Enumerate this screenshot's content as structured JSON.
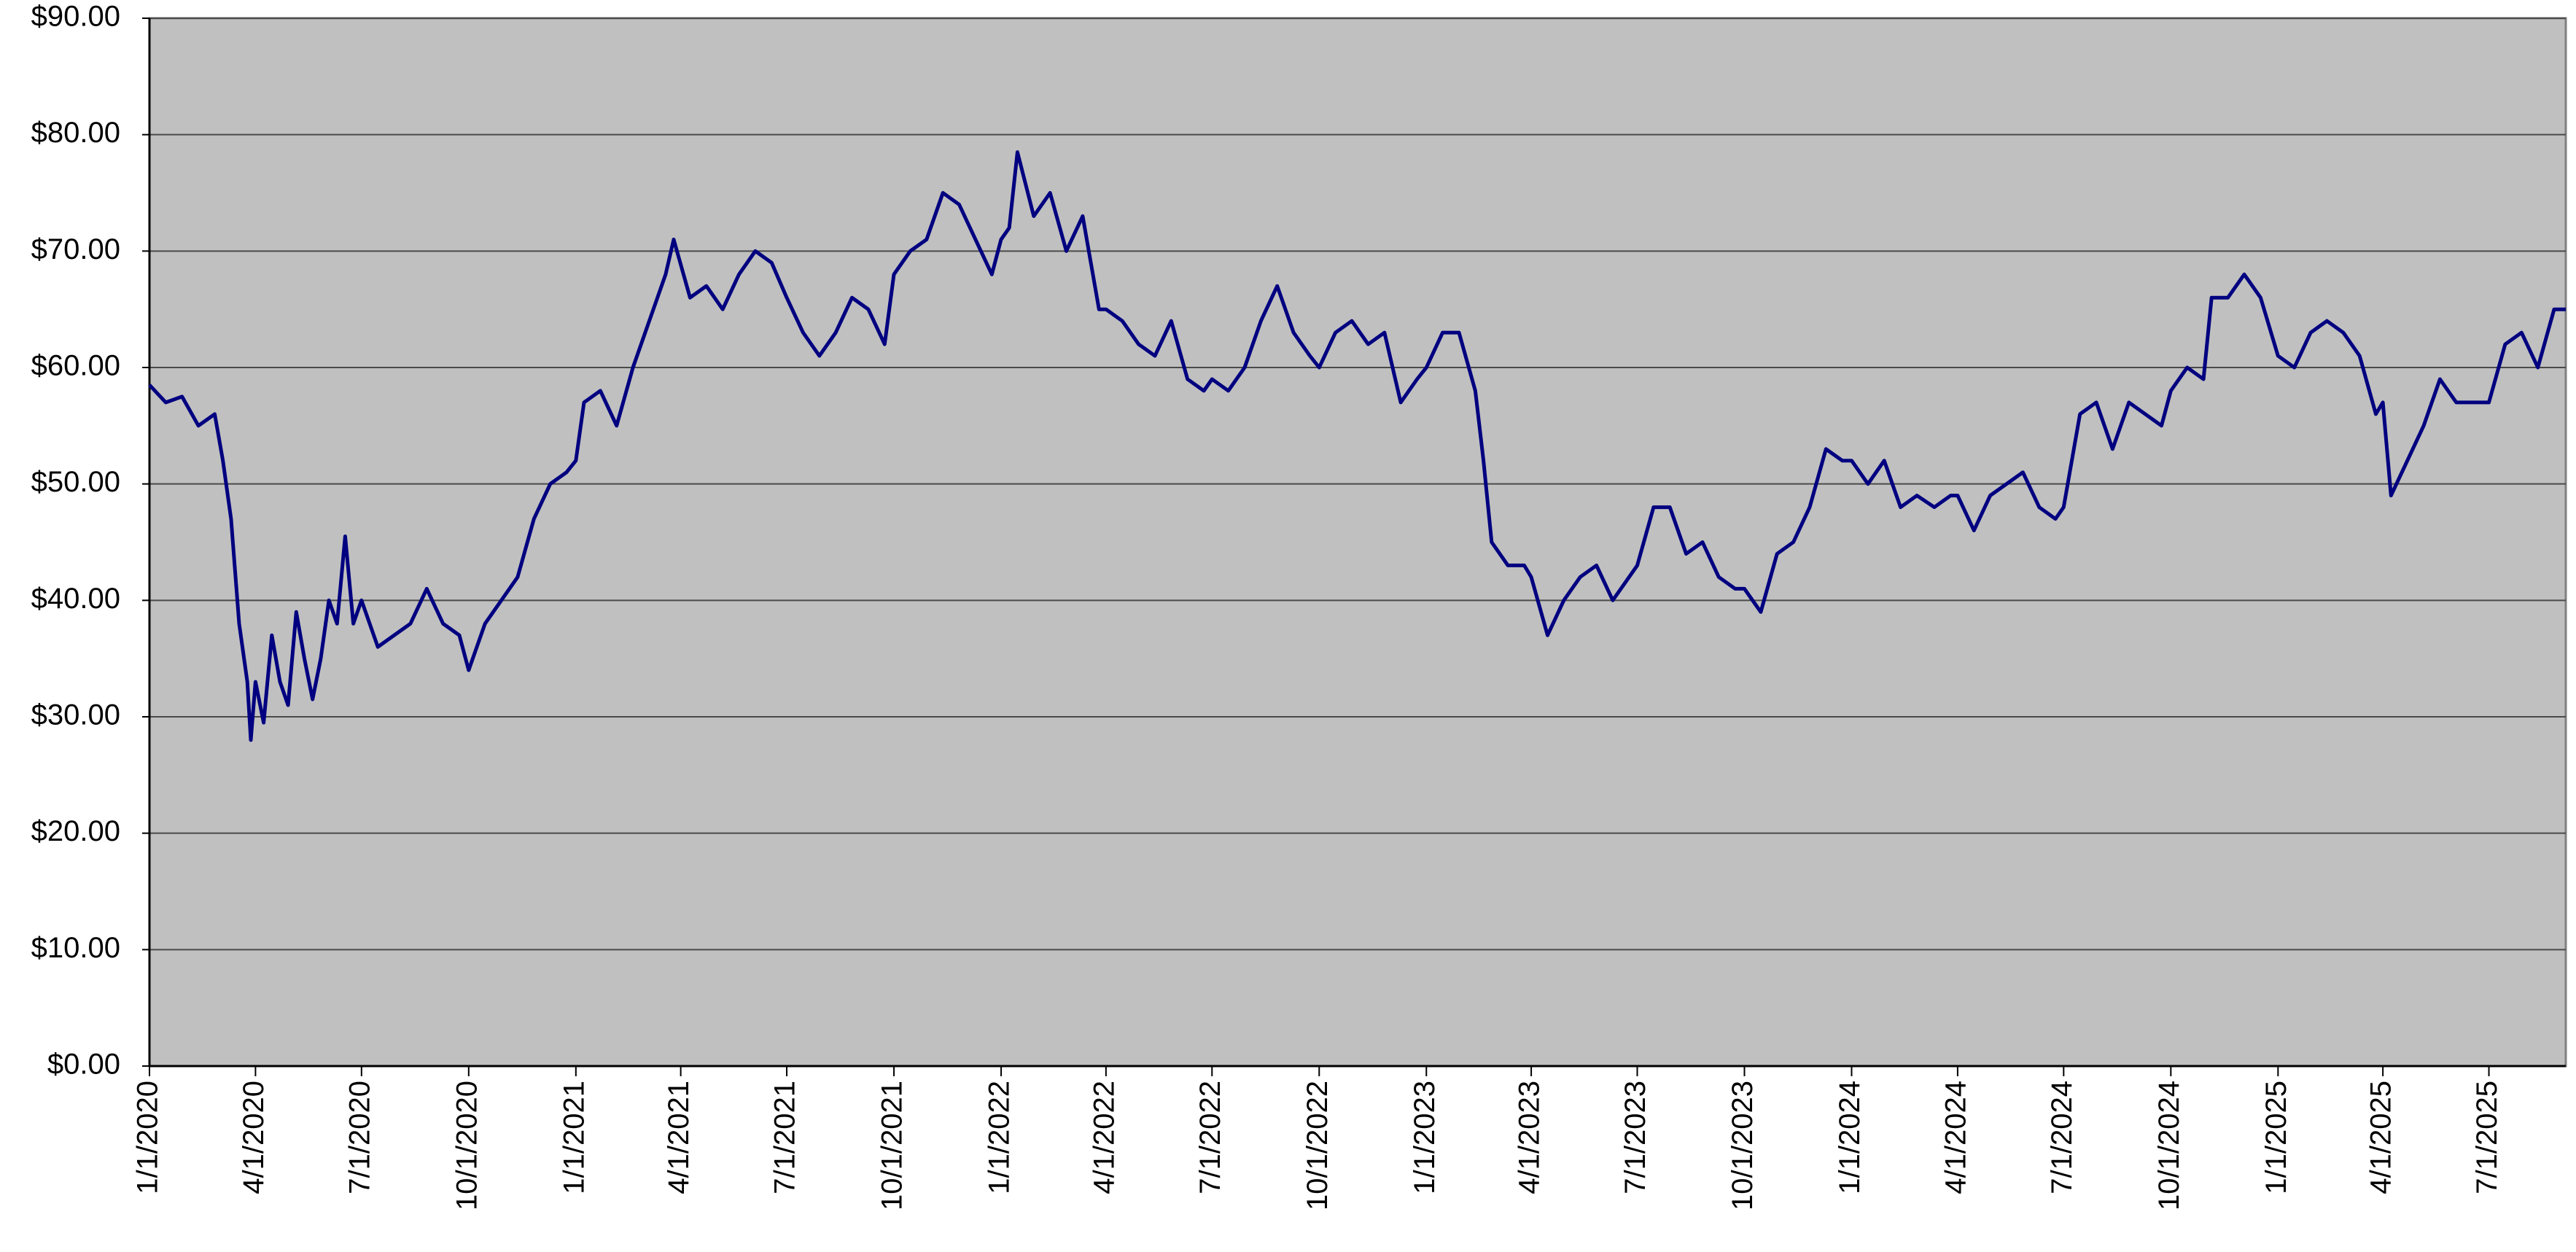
{
  "chart_data": {
    "type": "line",
    "x": [
      "1/1/2020",
      "1/15/2020",
      "1/29/2020",
      "2/12/2020",
      "2/26/2020",
      "3/4/2020",
      "3/11/2020",
      "3/18/2020",
      "3/25/2020",
      "3/28/2020",
      "4/1/2020",
      "4/8/2020",
      "4/15/2020",
      "4/22/2020",
      "4/29/2020",
      "5/6/2020",
      "5/13/2020",
      "5/20/2020",
      "5/27/2020",
      "6/3/2020",
      "6/10/2020",
      "6/17/2020",
      "6/24/2020",
      "7/1/2020",
      "7/15/2020",
      "7/29/2020",
      "8/12/2020",
      "8/26/2020",
      "9/9/2020",
      "9/23/2020",
      "10/1/2020",
      "10/15/2020",
      "10/29/2020",
      "11/12/2020",
      "11/26/2020",
      "12/10/2020",
      "12/24/2020",
      "1/1/2021",
      "1/8/2021",
      "1/22/2021",
      "2/5/2021",
      "2/19/2021",
      "3/5/2021",
      "3/19/2021",
      "3/26/2021",
      "4/9/2021",
      "4/23/2021",
      "5/7/2021",
      "5/21/2021",
      "6/4/2021",
      "6/18/2021",
      "7/1/2021",
      "7/15/2021",
      "7/29/2021",
      "8/12/2021",
      "8/26/2021",
      "9/9/2021",
      "9/23/2021",
      "10/1/2021",
      "10/15/2021",
      "10/29/2021",
      "11/12/2021",
      "11/26/2021",
      "12/10/2021",
      "12/24/2021",
      "1/1/2022",
      "1/8/2022",
      "1/15/2022",
      "1/29/2022",
      "2/12/2022",
      "2/26/2022",
      "3/12/2022",
      "3/26/2022",
      "4/1/2022",
      "4/15/2022",
      "4/29/2022",
      "5/13/2022",
      "5/27/2022",
      "6/10/2022",
      "6/24/2022",
      "7/1/2022",
      "7/15/2022",
      "7/29/2022",
      "8/12/2022",
      "8/26/2022",
      "9/9/2022",
      "9/23/2022",
      "10/1/2022",
      "10/15/2022",
      "10/29/2022",
      "11/12/2022",
      "11/26/2022",
      "12/10/2022",
      "12/24/2022",
      "1/1/2023",
      "1/15/2023",
      "1/29/2023",
      "2/12/2023",
      "2/19/2023",
      "2/26/2023",
      "3/12/2023",
      "3/26/2023",
      "4/1/2023",
      "4/15/2023",
      "4/29/2023",
      "5/13/2023",
      "5/27/2023",
      "6/10/2023",
      "6/24/2023",
      "7/1/2023",
      "7/15/2023",
      "7/29/2023",
      "8/12/2023",
      "8/26/2023",
      "9/9/2023",
      "9/23/2023",
      "10/1/2023",
      "10/15/2023",
      "10/29/2023",
      "11/12/2023",
      "11/26/2023",
      "12/10/2023",
      "12/24/2023",
      "1/1/2024",
      "1/15/2024",
      "1/29/2024",
      "2/12/2024",
      "2/26/2024",
      "3/12/2024",
      "3/26/2024",
      "4/1/2024",
      "4/15/2024",
      "4/29/2024",
      "5/13/2024",
      "5/27/2024",
      "6/10/2024",
      "6/24/2024",
      "7/1/2024",
      "7/15/2024",
      "7/29/2024",
      "8/12/2024",
      "8/26/2024",
      "9/9/2024",
      "9/23/2024",
      "10/1/2024",
      "10/15/2024",
      "10/29/2024",
      "11/5/2024",
      "11/19/2024",
      "12/3/2024",
      "12/17/2024",
      "1/1/2025",
      "1/15/2025",
      "1/29/2025",
      "2/12/2025",
      "2/26/2025",
      "3/12/2025",
      "3/26/2025",
      "4/1/2025",
      "4/8/2025",
      "4/22/2025",
      "5/6/2025",
      "5/20/2025",
      "6/3/2025",
      "6/17/2025",
      "7/1/2025",
      "7/15/2025",
      "7/29/2025",
      "8/12/2025",
      "8/26/2025",
      "9/5/2025"
    ],
    "series": [
      {
        "color": "#000080",
        "values": [
          58.5,
          57,
          57.5,
          55,
          56,
          52,
          47,
          38,
          33,
          28,
          33,
          29.5,
          37,
          33,
          31,
          39,
          35,
          31.5,
          35,
          40,
          38,
          45.5,
          38,
          40,
          36,
          37,
          38,
          41,
          38,
          37,
          34,
          38,
          40,
          42,
          47,
          50,
          51,
          52,
          57,
          58,
          55,
          60,
          64,
          68,
          71,
          66,
          67,
          65,
          68,
          70,
          69,
          66,
          63,
          61,
          63,
          66,
          65,
          62,
          68,
          70,
          71,
          75,
          74,
          71,
          68,
          71,
          72,
          78.5,
          73,
          75,
          70,
          73,
          65,
          65,
          64,
          62,
          61,
          64,
          59,
          58,
          59,
          58,
          60,
          64,
          67,
          63,
          61,
          60,
          63,
          64,
          62,
          63,
          57,
          59,
          60,
          63,
          63,
          58,
          52,
          45,
          43,
          43,
          42,
          37,
          40,
          42,
          43,
          40,
          42,
          43,
          48,
          48,
          44,
          45,
          42,
          41,
          41,
          39,
          44,
          45,
          48,
          53,
          52,
          52,
          50,
          52,
          48,
          49,
          48,
          49,
          49,
          46,
          49,
          50,
          51,
          48,
          47,
          48,
          56,
          57,
          53,
          57,
          56,
          55,
          58,
          60,
          59,
          66,
          66,
          68,
          66,
          61,
          60,
          63,
          64,
          63,
          61,
          56,
          57,
          49,
          52,
          55,
          59,
          57,
          57,
          57,
          62,
          63,
          60,
          65,
          65
        ]
      }
    ],
    "xlim": [
      "1/1/2020",
      "9/5/2025"
    ],
    "xticks": [
      "1/1/2020",
      "4/1/2020",
      "7/1/2020",
      "10/1/2020",
      "1/1/2021",
      "4/1/2021",
      "7/1/2021",
      "10/1/2021",
      "1/1/2022",
      "4/1/2022",
      "7/1/2022",
      "10/1/2022",
      "1/1/2023",
      "4/1/2023",
      "7/1/2023",
      "10/1/2023",
      "1/1/2024",
      "4/1/2024",
      "7/1/2024",
      "10/1/2024",
      "1/1/2025",
      "4/1/2025",
      "7/1/2025"
    ],
    "ylim": [
      0,
      90
    ],
    "yticks": [
      {
        "value": 0,
        "label": "$0.00"
      },
      {
        "value": 10,
        "label": "$10.00"
      },
      {
        "value": 20,
        "label": "$20.00"
      },
      {
        "value": 30,
        "label": "$30.00"
      },
      {
        "value": 40,
        "label": "$40.00"
      },
      {
        "value": 50,
        "label": "$50.00"
      },
      {
        "value": 60,
        "label": "$60.00"
      },
      {
        "value": 70,
        "label": "$70.00"
      },
      {
        "value": 80,
        "label": "$80.00"
      },
      {
        "value": 90,
        "label": "$90.00"
      }
    ],
    "grid": true
  }
}
